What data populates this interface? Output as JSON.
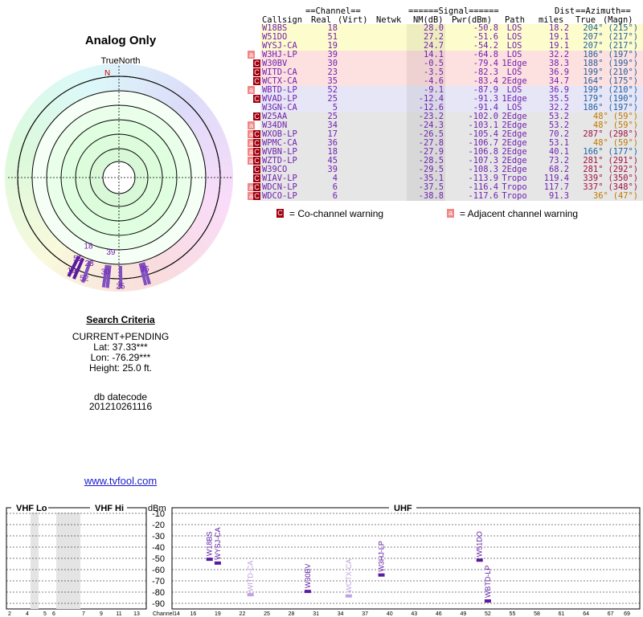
{
  "title": "Analog Only",
  "north_label": "TrueNorth",
  "north_marker": "N",
  "compass": {
    "channel_labels": [
      {
        "text": "18",
        "az": 204,
        "r": 0.66
      },
      {
        "text": "51",
        "az": 207,
        "r": 0.8
      },
      {
        "text": "19",
        "az": 207,
        "r": 0.92
      },
      {
        "text": "23",
        "az": 199,
        "r": 0.8
      },
      {
        "text": "39",
        "az": 186,
        "r": 0.66
      },
      {
        "text": "30",
        "az": 188,
        "r": 0.84
      },
      {
        "text": "52",
        "az": 199,
        "r": 0.94
      },
      {
        "text": "25",
        "az": 179,
        "r": 0.96
      },
      {
        "text": "35",
        "az": 164,
        "r": 0.84
      }
    ]
  },
  "criteria": {
    "heading": "Search Criteria",
    "mode": "CURRENT+PENDING",
    "lat": "Lat: 37.33***",
    "lon": "Lon: -76.29***",
    "height": "Height: 25.0 ft.",
    "db_label": "db datecode",
    "db_code": "201210261116"
  },
  "link": "www.tvfool.com",
  "table": {
    "group_channel": "==Channel==",
    "group_signal": "======Signal======",
    "group_azimuth": "==Azimuth==",
    "head_dist": "Dist",
    "columns": {
      "callsign": "Callsign",
      "real": "Real",
      "virt": "(Virt)",
      "netwk": "Netwk",
      "nm": "NM(dB)",
      "pwr": "Pwr(dBm)",
      "path": "Path",
      "miles": "miles",
      "true": "True",
      "magn": "(Magn)"
    },
    "rows": [
      {
        "callsign": "W18BS",
        "real": "18",
        "nm": "28.0",
        "pwr": "-50.8",
        "path": "LOS",
        "dist": "18.2",
        "az_true": "204°",
        "az_magn": "(215°)",
        "warn": "",
        "bg": "#fdfccc",
        "az_color": "#2060a0"
      },
      {
        "callsign": "W51DO",
        "real": "51",
        "nm": "27.2",
        "pwr": "-51.6",
        "path": "LOS",
        "dist": "19.1",
        "az_true": "207°",
        "az_magn": "(217°)",
        "warn": "",
        "bg": "#fdfccc",
        "az_color": "#2060a0"
      },
      {
        "callsign": "WYSJ-CA",
        "real": "19",
        "nm": "24.7",
        "pwr": "-54.2",
        "path": "LOS",
        "dist": "19.1",
        "az_true": "207°",
        "az_magn": "(217°)",
        "warn": "",
        "bg": "#fdfccc",
        "az_color": "#2060a0"
      },
      {
        "callsign": "W3HJ-LP",
        "real": "39",
        "nm": "14.1",
        "pwr": "-64.8",
        "path": "LOS",
        "dist": "32.2",
        "az_true": "186°",
        "az_magn": "(197°)",
        "warn": "a",
        "bg": "#fde0e0",
        "az_color": "#2060a0"
      },
      {
        "callsign": "W30BV",
        "real": "30",
        "nm": "-0.5",
        "pwr": "-79.4",
        "path": "1Edge",
        "dist": "38.3",
        "az_true": "188°",
        "az_magn": "(199°)",
        "warn": "c",
        "bg": "#fde0e0",
        "az_color": "#2060a0"
      },
      {
        "callsign": "WITD-CA",
        "real": "23",
        "nm": "-3.5",
        "pwr": "-82.3",
        "path": "LOS",
        "dist": "36.9",
        "az_true": "199°",
        "az_magn": "(210°)",
        "warn": "c",
        "bg": "#fde0e0",
        "az_color": "#2060a0"
      },
      {
        "callsign": "WCTX-CA",
        "real": "35",
        "nm": "-4.6",
        "pwr": "-83.4",
        "path": "2Edge",
        "dist": "34.7",
        "az_true": "164°",
        "az_magn": "(175°)",
        "warn": "c",
        "bg": "#fde0e0",
        "az_color": "#2060a0"
      },
      {
        "callsign": "WBTD-LP",
        "real": "52",
        "nm": "-9.1",
        "pwr": "-87.9",
        "path": "LOS",
        "dist": "36.9",
        "az_true": "199°",
        "az_magn": "(210°)",
        "warn": "a",
        "bg": "#e6e6f6",
        "az_color": "#2060a0"
      },
      {
        "callsign": "WVAD-LP",
        "real": "25",
        "nm": "-12.4",
        "pwr": "-91.3",
        "path": "1Edge",
        "dist": "35.5",
        "az_true": "179°",
        "az_magn": "(190°)",
        "warn": "c",
        "bg": "#e6e6f6",
        "az_color": "#2060a0"
      },
      {
        "callsign": "W3GN-CA",
        "real": "5",
        "nm": "-12.6",
        "pwr": "-91.4",
        "path": "LOS",
        "dist": "32.2",
        "az_true": "186°",
        "az_magn": "(197°)",
        "warn": "",
        "bg": "#e6e6f6",
        "az_color": "#2060a0"
      },
      {
        "callsign": "W25AA",
        "real": "25",
        "nm": "-23.2",
        "pwr": "-102.0",
        "path": "2Edge",
        "dist": "53.2",
        "az_true": "48°",
        "az_magn": "(59°)",
        "warn": "c",
        "bg": "#e6e6e6",
        "az_color": "#c07a00"
      },
      {
        "callsign": "W34DN",
        "real": "34",
        "nm": "-24.3",
        "pwr": "-103.1",
        "path": "2Edge",
        "dist": "53.2",
        "az_true": "48°",
        "az_magn": "(59°)",
        "warn": "a",
        "bg": "#e6e6e6",
        "az_color": "#c07a00"
      },
      {
        "callsign": "WXOB-LP",
        "real": "17",
        "nm": "-26.5",
        "pwr": "-105.4",
        "path": "2Edge",
        "dist": "70.2",
        "az_true": "287°",
        "az_magn": "(298°)",
        "warn": "ac",
        "bg": "#e6e6e6",
        "az_color": "#a01040"
      },
      {
        "callsign": "WPMC-CA",
        "real": "36",
        "nm": "-27.8",
        "pwr": "-106.7",
        "path": "2Edge",
        "dist": "53.1",
        "az_true": "48°",
        "az_magn": "(59°)",
        "warn": "ac",
        "bg": "#e6e6e6",
        "az_color": "#c07a00"
      },
      {
        "callsign": "WVBN-LP",
        "real": "18",
        "nm": "-27.9",
        "pwr": "-106.8",
        "path": "2Edge",
        "dist": "40.1",
        "az_true": "166°",
        "az_magn": "(177°)",
        "warn": "ac",
        "bg": "#e6e6e6",
        "az_color": "#2060a0"
      },
      {
        "callsign": "WZTD-LP",
        "real": "45",
        "nm": "-28.5",
        "pwr": "-107.3",
        "path": "2Edge",
        "dist": "73.2",
        "az_true": "281°",
        "az_magn": "(291°)",
        "warn": "ac",
        "bg": "#e6e6e6",
        "az_color": "#a01040"
      },
      {
        "callsign": "W39CO",
        "real": "39",
        "nm": "-29.5",
        "pwr": "-108.3",
        "path": "2Edge",
        "dist": "68.2",
        "az_true": "281°",
        "az_magn": "(292°)",
        "warn": "c",
        "bg": "#e6e6e6",
        "az_color": "#a01040"
      },
      {
        "callsign": "WIAV-LP",
        "real": "4",
        "nm": "-35.1",
        "pwr": "-113.9",
        "path": "Tropo",
        "dist": "119.4",
        "az_true": "339°",
        "az_magn": "(350°)",
        "warn": "c",
        "bg": "#e6e6e6",
        "az_color": "#a01040"
      },
      {
        "callsign": "WDCN-LP",
        "real": "6",
        "nm": "-37.5",
        "pwr": "-116.4",
        "path": "Tropo",
        "dist": "117.7",
        "az_true": "337°",
        "az_magn": "(348°)",
        "warn": "ac",
        "bg": "#e6e6e6",
        "az_color": "#a01040"
      },
      {
        "callsign": "WDCO-LP",
        "real": "6",
        "nm": "-38.8",
        "pwr": "-117.6",
        "path": "Tropo",
        "dist": "91.3",
        "az_true": "36°",
        "az_magn": "(47°)",
        "warn": "ac",
        "bg": "#e6e6e6",
        "az_color": "#c07a00"
      }
    ],
    "legend": {
      "co_mark": "C",
      "co_text": "= Co-channel warning",
      "adj_mark": "a",
      "adj_text": "= Adjacent channel warning"
    }
  },
  "colors": {
    "co_warn": "#a00010",
    "adj_warn": "#f08888",
    "callsign": "#7020b0",
    "bar": "#5a1aa0",
    "bar_faint": "#c0a0e0"
  },
  "chart_data": {
    "type": "bar",
    "title": "",
    "sections": [
      "VHF Lo",
      "VHF Hi",
      "UHF"
    ],
    "ylabel": "dBm",
    "xlabel": "Channel",
    "ylim": [
      -95,
      -5
    ],
    "yticks": [
      -10,
      -20,
      -30,
      -40,
      -50,
      -60,
      -70,
      -80,
      -90
    ],
    "vhf_lo_ticks": [
      2,
      4,
      5,
      6
    ],
    "vhf_hi_ticks": [
      7,
      9,
      11,
      13
    ],
    "uhf_ticks": [
      14,
      16,
      19,
      22,
      25,
      28,
      31,
      34,
      37,
      40,
      43,
      46,
      49,
      52,
      55,
      58,
      61,
      64,
      67,
      69
    ],
    "shaded_channels": [
      5,
      6,
      7
    ],
    "stations": [
      {
        "callsign": "W18BS",
        "channel": 18,
        "pwr": -50.8,
        "faint": false
      },
      {
        "callsign": "WYSJ-CA",
        "channel": 19,
        "pwr": -54.2,
        "faint": false
      },
      {
        "callsign": "WITD-CA",
        "channel": 23,
        "pwr": -82.3,
        "faint": true
      },
      {
        "callsign": "W30BV",
        "channel": 30,
        "pwr": -79.4,
        "faint": false
      },
      {
        "callsign": "WCTX-CA",
        "channel": 35,
        "pwr": -83.4,
        "faint": true
      },
      {
        "callsign": "W3HJ-LP",
        "channel": 39,
        "pwr": -64.8,
        "faint": false
      },
      {
        "callsign": "W51DO",
        "channel": 51,
        "pwr": -51.6,
        "faint": false
      },
      {
        "callsign": "WBTD-LP",
        "channel": 52,
        "pwr": -87.9,
        "faint": false
      }
    ]
  }
}
